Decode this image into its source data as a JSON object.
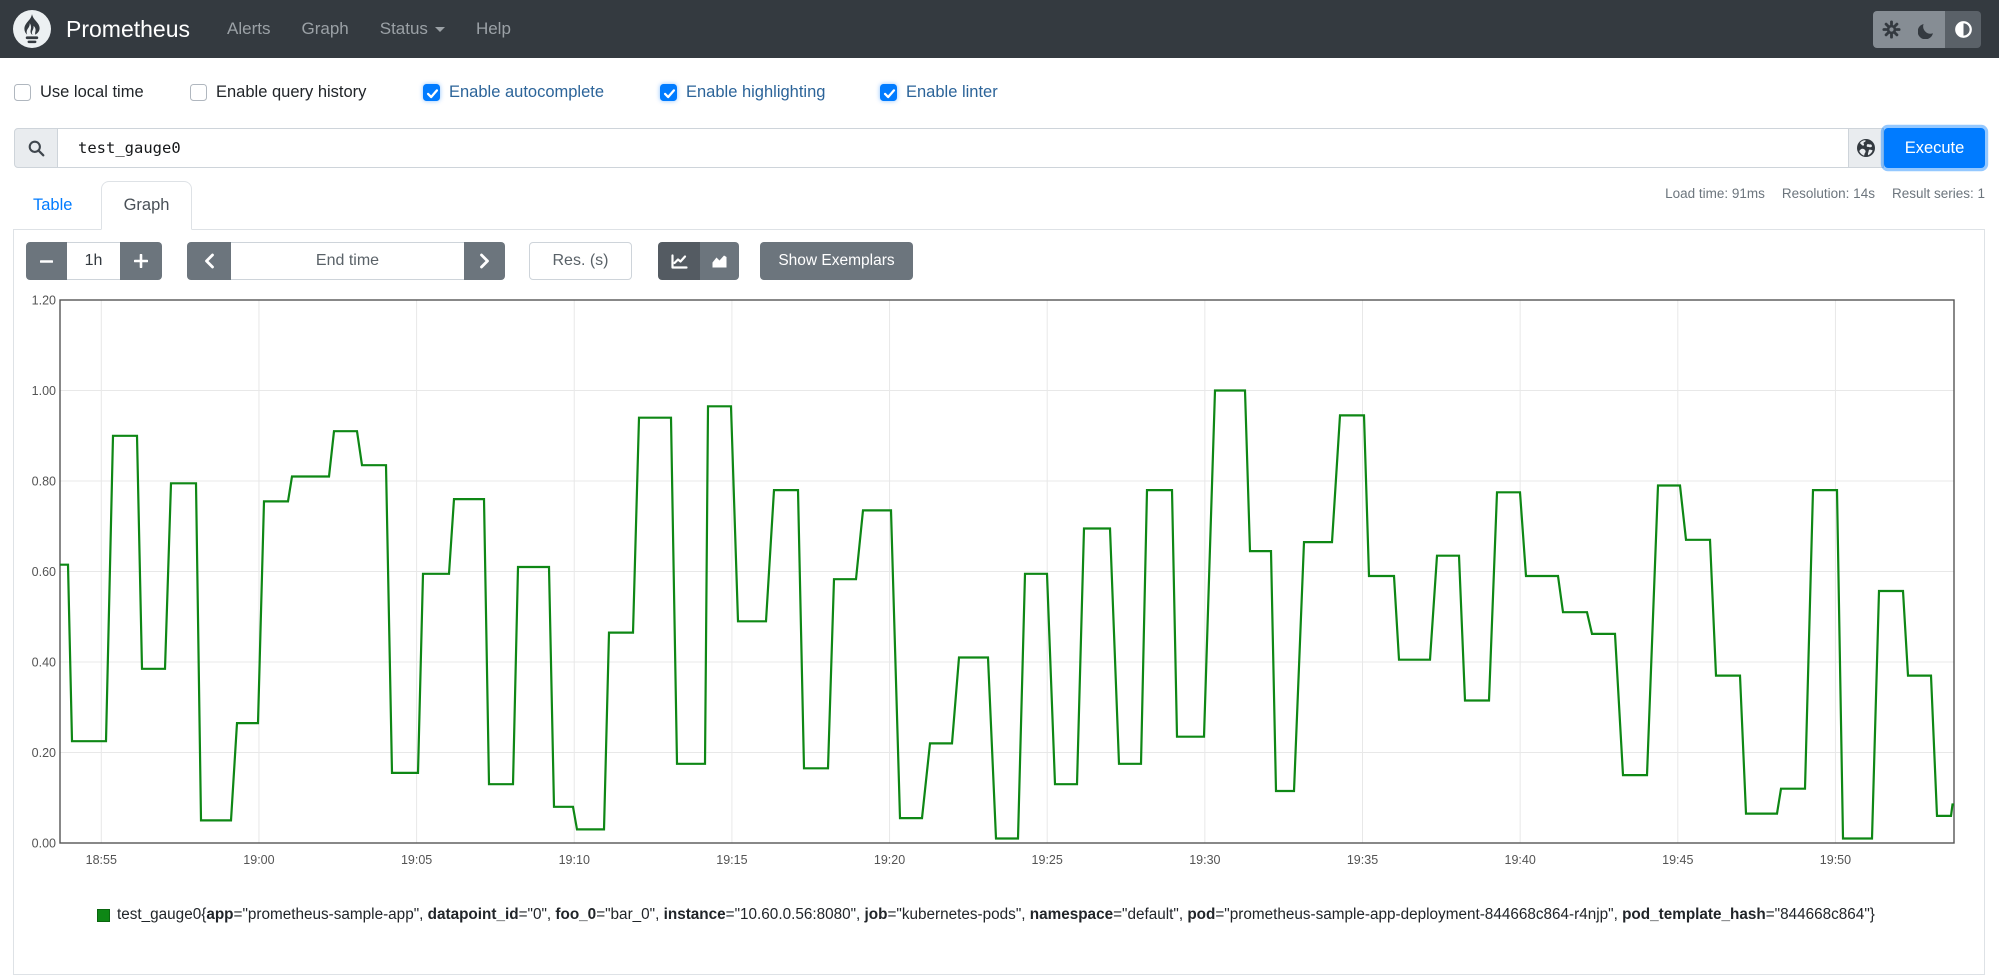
{
  "navbar": {
    "brand": "Prometheus",
    "links": [
      {
        "label": "Alerts"
      },
      {
        "label": "Graph"
      },
      {
        "label": "Status",
        "caret": true
      },
      {
        "label": "Help"
      }
    ],
    "theme_buttons": [
      {
        "icon": "sun-icon",
        "active": false
      },
      {
        "icon": "moon-icon",
        "active": false
      },
      {
        "icon": "auto-contrast-icon",
        "active": true
      }
    ]
  },
  "options": {
    "items": [
      {
        "label": "Use local time",
        "checked": false
      },
      {
        "label": "Enable query history",
        "checked": false
      },
      {
        "label": "Enable autocomplete",
        "checked": true
      },
      {
        "label": "Enable highlighting",
        "checked": true
      },
      {
        "label": "Enable linter",
        "checked": true
      }
    ]
  },
  "query": {
    "value": "test_gauge0",
    "execute_label": "Execute"
  },
  "stats": {
    "load_time": "Load time: 91ms",
    "resolution": "Resolution: 14s",
    "result_series": "Result series: 1"
  },
  "tabs": {
    "table": "Table",
    "graph": "Graph"
  },
  "toolbar": {
    "range_value": "1h",
    "end_time_placeholder": "End time",
    "res_placeholder": "Res. (s)",
    "show_exemplars": "Show Exemplars"
  },
  "chart_data": {
    "type": "line",
    "line_style": "step-plateaus",
    "title": "",
    "xlabel": "",
    "ylabel": "",
    "ylim": [
      0,
      1.2
    ],
    "grid": true,
    "x_axis": {
      "unit": "minutes after 18:50",
      "range": [
        3.69,
        63.76
      ],
      "ticks": [
        {
          "t": 5,
          "label": "18:55"
        },
        {
          "t": 10,
          "label": "19:00"
        },
        {
          "t": 15,
          "label": "19:05"
        },
        {
          "t": 20,
          "label": "19:10"
        },
        {
          "t": 25,
          "label": "19:15"
        },
        {
          "t": 30,
          "label": "19:20"
        },
        {
          "t": 35,
          "label": "19:25"
        },
        {
          "t": 40,
          "label": "19:30"
        },
        {
          "t": 45,
          "label": "19:35"
        },
        {
          "t": 50,
          "label": "19:40"
        },
        {
          "t": 55,
          "label": "19:45"
        },
        {
          "t": 60,
          "label": "19:50"
        }
      ]
    },
    "y_axis": {
      "ticks": [
        {
          "v": 0.0,
          "label": "0.00"
        },
        {
          "v": 0.2,
          "label": "0.20"
        },
        {
          "v": 0.4,
          "label": "0.40"
        },
        {
          "v": 0.6,
          "label": "0.60"
        },
        {
          "v": 0.8,
          "label": "0.80"
        },
        {
          "v": 1.0,
          "label": "1.00"
        },
        {
          "v": 1.2,
          "label": "1.20"
        }
      ]
    },
    "series": [
      {
        "name": "test_gauge0{app=\"prometheus-sample-app\", datapoint_id=\"0\", foo_0=\"bar_0\", instance=\"10.60.0.56:8080\", job=\"kubernetes-pods\", namespace=\"default\", pod=\"prometheus-sample-app-deployment-844668c864-r4njp\", pod_template_hash=\"844668c864\"}",
        "color": "#0e8715",
        "plateau_segments": [
          [
            3.69,
            3.944,
            0.615
          ],
          [
            4.071,
            5.149,
            0.225
          ],
          [
            5.371,
            6.132,
            0.9
          ],
          [
            6.291,
            7.02,
            0.385
          ],
          [
            7.211,
            8.003,
            0.795
          ],
          [
            8.162,
            9.114,
            0.05
          ],
          [
            9.304,
            9.97,
            0.265
          ],
          [
            10.16,
            10.921,
            0.755
          ],
          [
            11.048,
            12.222,
            0.81
          ],
          [
            12.38,
            13.11,
            0.91
          ],
          [
            13.268,
            14.029,
            0.835
          ],
          [
            14.22,
            15.044,
            0.155
          ],
          [
            15.203,
            16.028,
            0.595
          ],
          [
            16.186,
            17.138,
            0.76
          ],
          [
            17.296,
            18.057,
            0.13
          ],
          [
            18.216,
            19.199,
            0.61
          ],
          [
            19.358,
            19.96,
            0.08
          ],
          [
            20.087,
            20.944,
            0.03
          ],
          [
            21.102,
            21.863,
            0.465
          ],
          [
            22.054,
            23.069,
            0.94
          ],
          [
            23.259,
            24.147,
            0.175
          ],
          [
            24.242,
            24.971,
            0.965
          ],
          [
            25.193,
            26.082,
            0.49
          ],
          [
            26.335,
            27.096,
            0.78
          ],
          [
            27.287,
            28.048,
            0.165
          ],
          [
            28.238,
            28.936,
            0.583
          ],
          [
            29.158,
            30.046,
            0.735
          ],
          [
            30.331,
            31.029,
            0.055
          ],
          [
            31.283,
            31.981,
            0.22
          ],
          [
            32.203,
            33.122,
            0.41
          ],
          [
            33.376,
            34.074,
            0.01
          ],
          [
            34.296,
            34.994,
            0.595
          ],
          [
            35.247,
            35.945,
            0.13
          ],
          [
            36.167,
            36.992,
            0.695
          ],
          [
            37.277,
            37.975,
            0.175
          ],
          [
            38.165,
            38.958,
            0.78
          ],
          [
            39.117,
            39.973,
            0.235
          ],
          [
            40.322,
            41.273,
            1.0
          ],
          [
            41.432,
            42.098,
            0.645
          ],
          [
            42.257,
            42.827,
            0.115
          ],
          [
            43.145,
            44.033,
            0.665
          ],
          [
            44.286,
            45.048,
            0.945
          ],
          [
            45.206,
            45.999,
            0.59
          ],
          [
            46.158,
            47.141,
            0.405
          ],
          [
            47.363,
            48.061,
            0.635
          ],
          [
            48.251,
            49.012,
            0.315
          ],
          [
            49.266,
            49.995,
            0.775
          ],
          [
            50.186,
            51.2,
            0.59
          ],
          [
            51.359,
            52.12,
            0.51
          ],
          [
            52.279,
            53.008,
            0.462
          ],
          [
            53.262,
            54.023,
            0.15
          ],
          [
            54.372,
            55.07,
            0.79
          ],
          [
            55.26,
            56.021,
            0.67
          ],
          [
            56.212,
            56.973,
            0.37
          ],
          [
            57.163,
            58.146,
            0.065
          ],
          [
            58.273,
            59.034,
            0.12
          ],
          [
            59.288,
            60.049,
            0.78
          ],
          [
            60.239,
            61.159,
            0.01
          ],
          [
            61.381,
            62.142,
            0.557
          ],
          [
            62.301,
            63.03,
            0.37
          ],
          [
            63.221,
            63.665,
            0.06
          ],
          [
            63.712,
            63.76,
            0.085
          ]
        ]
      }
    ],
    "legend_position": "bottom"
  },
  "legend": {
    "metric": "test_gauge0",
    "labels": [
      [
        "app",
        "prometheus-sample-app"
      ],
      [
        "datapoint_id",
        "0"
      ],
      [
        "foo_0",
        "bar_0"
      ],
      [
        "instance",
        "10.60.0.56:8080"
      ],
      [
        "job",
        "kubernetes-pods"
      ],
      [
        "namespace",
        "default"
      ],
      [
        "pod",
        "prometheus-sample-app-deployment-844668c864-r4njp"
      ],
      [
        "pod_template_hash",
        "844668c864"
      ]
    ]
  },
  "colors": {
    "navbar_bg": "#343a40",
    "accent_blue": "#007bff",
    "checked_label_blue": "#2c6499",
    "button_gray": "#6c757d",
    "series_green": "#0e8715",
    "grid_line": "#e8e8e8",
    "chart_border": "#555555"
  }
}
